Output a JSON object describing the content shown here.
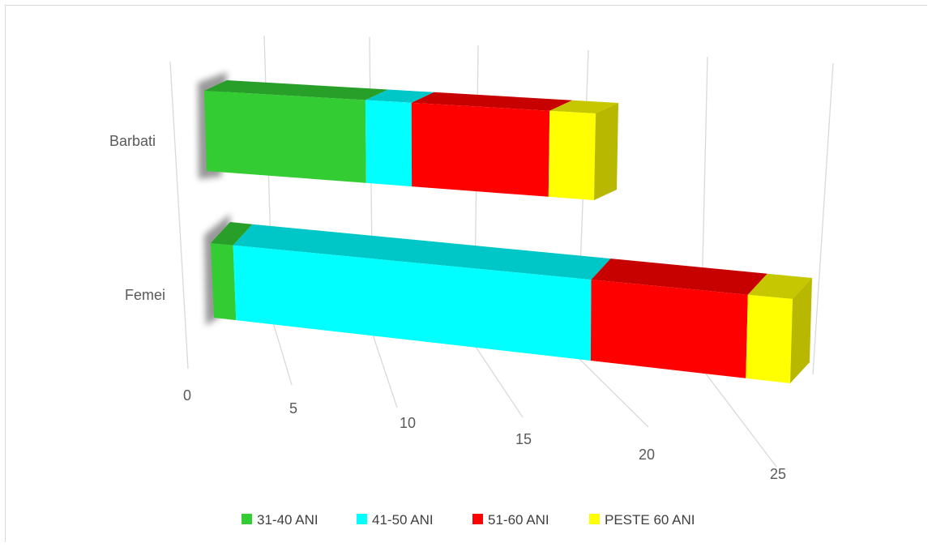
{
  "chart_data": {
    "type": "bar",
    "orientation": "horizontal",
    "stacked": true,
    "style": "3d",
    "categories": [
      "Barbati",
      "Femei"
    ],
    "series": [
      {
        "name": "31-40 ANI",
        "values": [
          7,
          1
        ],
        "color": "#33CC33"
      },
      {
        "name": "41-50 ANI",
        "values": [
          2,
          16
        ],
        "color": "#00FFFF"
      },
      {
        "name": "51-60 ANI",
        "values": [
          6,
          7
        ],
        "color": "#FF0000"
      },
      {
        "name": "PESTE 60 ANI",
        "values": [
          2,
          2
        ],
        "color": "#FFFF00"
      }
    ],
    "xlim": [
      0,
      25
    ],
    "xticks": [
      "0",
      "5",
      "10",
      "15",
      "20",
      "25"
    ],
    "grid": true,
    "legend": "bottom"
  }
}
